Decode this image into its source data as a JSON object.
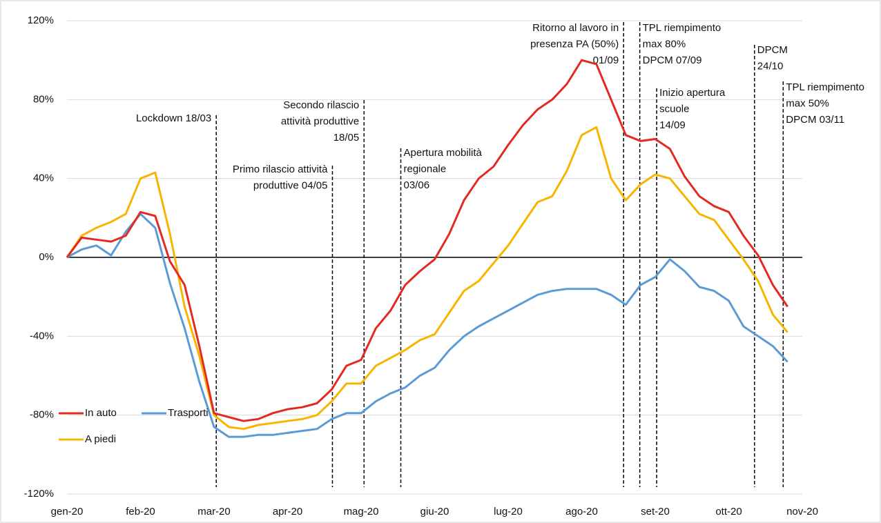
{
  "chart_data": {
    "type": "line",
    "x": [
      0,
      0.2,
      0.4,
      0.6,
      0.8,
      1,
      1.2,
      1.4,
      1.6,
      1.8,
      2,
      2.2,
      2.4,
      2.6,
      2.8,
      3,
      3.2,
      3.4,
      3.6,
      3.8,
      4,
      4.2,
      4.4,
      4.6,
      4.8,
      5,
      5.2,
      5.4,
      5.6,
      5.8,
      6,
      6.2,
      6.4,
      6.6,
      6.8,
      7,
      7.2,
      7.4,
      7.6,
      7.8,
      8,
      8.2,
      8.4,
      8.6,
      8.8,
      9,
      9.2,
      9.4,
      9.6,
      9.8
    ],
    "xlim": [
      0,
      10
    ],
    "xticks": [
      {
        "value": 0,
        "label": "gen-20"
      },
      {
        "value": 1,
        "label": "feb-20"
      },
      {
        "value": 2,
        "label": "mar-20"
      },
      {
        "value": 3,
        "label": "apr-20"
      },
      {
        "value": 4,
        "label": "mag-20"
      },
      {
        "value": 5,
        "label": "giu-20"
      },
      {
        "value": 6,
        "label": "lug-20"
      },
      {
        "value": 7,
        "label": "ago-20"
      },
      {
        "value": 8,
        "label": "set-20"
      },
      {
        "value": 9,
        "label": "ott-20"
      },
      {
        "value": 10,
        "label": "nov-20"
      }
    ],
    "ylim": [
      -120,
      120
    ],
    "yticks": [
      {
        "value": -120,
        "label": "-120%"
      },
      {
        "value": -80,
        "label": "-80%"
      },
      {
        "value": -40,
        "label": "-40%"
      },
      {
        "value": 0,
        "label": "0%"
      },
      {
        "value": 40,
        "label": "40%"
      },
      {
        "value": 80,
        "label": "80%"
      },
      {
        "value": 120,
        "label": "120%"
      }
    ],
    "grid": true,
    "legend": "lower left",
    "series": [
      {
        "name": "In auto",
        "color": "#e32a22",
        "values": [
          0,
          10,
          9,
          8,
          11,
          23,
          21,
          -2,
          -14,
          -45,
          -79,
          -81,
          -83,
          -82,
          -79,
          -77,
          -76,
          -74,
          -67,
          -55,
          -52,
          -36,
          -27,
          -14,
          -7,
          -1,
          12,
          29,
          40,
          46,
          57,
          67,
          75,
          80,
          88,
          100,
          98,
          80,
          62,
          59,
          60,
          55,
          41,
          31,
          26,
          23,
          11,
          1,
          -14,
          -25
        ]
      },
      {
        "name": "Trasporti",
        "color": "#5b9bd5",
        "values": [
          0,
          4,
          6,
          1,
          13,
          22,
          15,
          -13,
          -36,
          -63,
          -86,
          -91,
          -91,
          -90,
          -90,
          -89,
          -88,
          -87,
          -82,
          -79,
          -79,
          -73,
          -69,
          -66,
          -60,
          -56,
          -47,
          -40,
          -35,
          -31,
          -27,
          -23,
          -19,
          -17,
          -16,
          -16,
          -16,
          -19,
          -24,
          -14,
          -10,
          -1,
          -7,
          -15,
          -17,
          -22,
          -35,
          -40,
          -45,
          -53
        ]
      },
      {
        "name": "A piedi",
        "color": "#f7b500",
        "values": [
          0,
          11,
          15,
          18,
          22,
          40,
          43,
          12,
          -25,
          -50,
          -80,
          -86,
          -87,
          -85,
          -84,
          -83,
          -82,
          -80,
          -73,
          -64,
          -64,
          -55,
          -51,
          -47,
          -42,
          -39,
          -28,
          -17,
          -12,
          -3,
          6,
          17,
          28,
          31,
          44,
          62,
          66,
          40,
          29,
          37,
          42,
          40,
          31,
          22,
          19,
          9,
          -1,
          -12,
          -29,
          -38
        ]
      }
    ],
    "annotations": [
      {
        "x": 2.03,
        "text": [
          "Lockdown 18/03"
        ]
      },
      {
        "x": 3.61,
        "text": [
          "Primo rilascio attività",
          "produttive 04/05"
        ]
      },
      {
        "x": 4.04,
        "text": [
          "Secondo rilascio",
          "attività produttive",
          "18/05"
        ]
      },
      {
        "x": 4.54,
        "text": [
          "Apertura mobilità",
          "regionale",
          "03/06"
        ]
      },
      {
        "x": 7.57,
        "text": [
          "Ritorno al lavoro in",
          "presenza PA (50%)",
          "01/09"
        ]
      },
      {
        "x": 7.79,
        "text": [
          "TPL riempimento",
          "max 80%",
          "DPCM 07/09"
        ]
      },
      {
        "x": 8.02,
        "text": [
          "Inizio apertura",
          "scuole",
          "14/09"
        ]
      },
      {
        "x": 9.35,
        "text": [
          "DPCM",
          "24/10"
        ]
      },
      {
        "x": 9.74,
        "text": [
          "TPL riempimento",
          "max 50%",
          "DPCM 03/11"
        ]
      }
    ]
  }
}
